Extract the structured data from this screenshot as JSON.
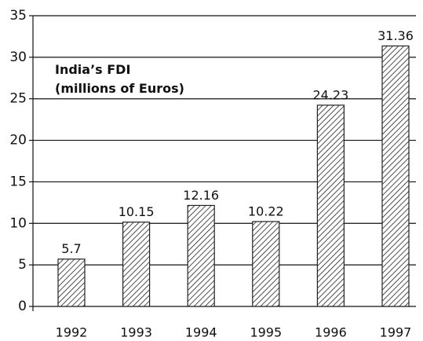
{
  "chart_data": {
    "type": "bar",
    "title": "India’s FDI",
    "subtitle": "(millions of Euros)",
    "categories": [
      "1992",
      "1993",
      "1994",
      "1995",
      "1996",
      "1997"
    ],
    "values": [
      5.7,
      10.15,
      12.16,
      10.22,
      24.23,
      31.36
    ],
    "color": "#222222",
    "ylim": [
      0,
      35
    ],
    "yticks": [
      0,
      5,
      10,
      15,
      20,
      25,
      30,
      35
    ],
    "grid": true
  }
}
